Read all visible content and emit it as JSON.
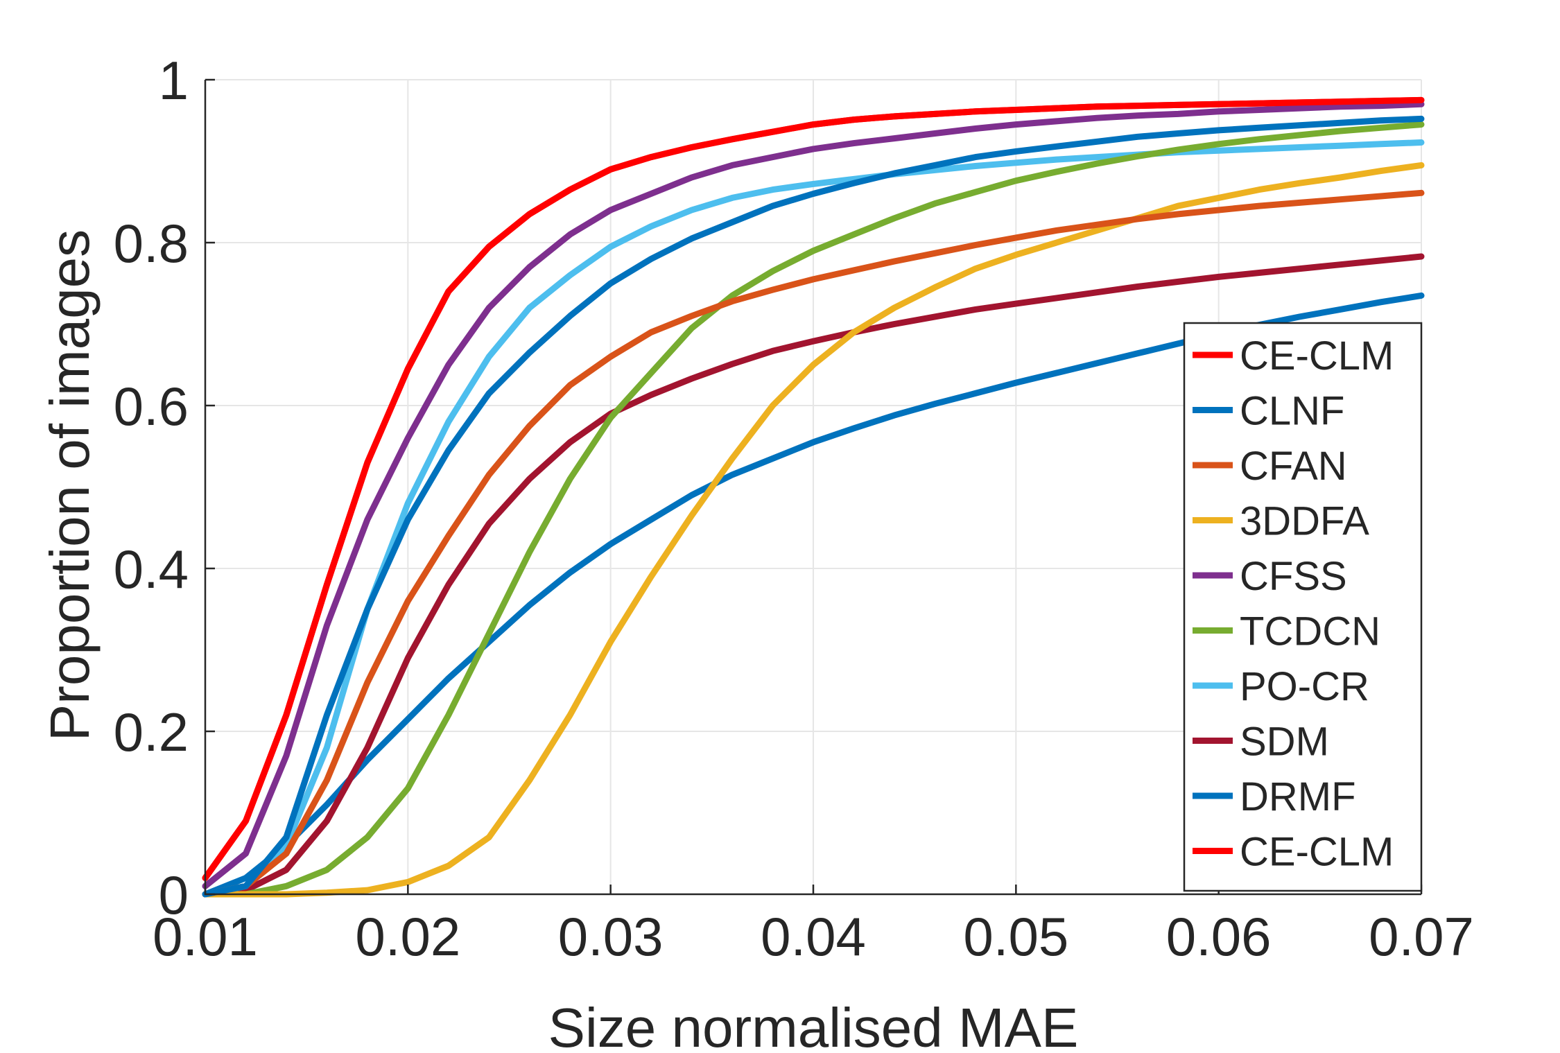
{
  "chart_data": {
    "type": "line",
    "title": "",
    "xlabel": "Size normalised MAE",
    "ylabel": "Proportion of images",
    "xlim": [
      0.01,
      0.07
    ],
    "ylim": [
      0,
      1
    ],
    "xticks": [
      "0.01",
      "0.02",
      "0.03",
      "0.04",
      "0.05",
      "0.06",
      "0.07"
    ],
    "yticks": [
      "0",
      "0.2",
      "0.4",
      "0.6",
      "0.8",
      "1"
    ],
    "grid": true,
    "legend_position": "bottom-right",
    "x": [
      0.01,
      0.012,
      0.014,
      0.016,
      0.018,
      0.02,
      0.022,
      0.024,
      0.026,
      0.028,
      0.03,
      0.032,
      0.034,
      0.036,
      0.038,
      0.04,
      0.042,
      0.044,
      0.046,
      0.048,
      0.05,
      0.052,
      0.054,
      0.056,
      0.058,
      0.06,
      0.062,
      0.064,
      0.066,
      0.068,
      0.07
    ],
    "series": [
      {
        "name": "CE-CLM",
        "color": "#ff0000",
        "values": [
          0.02,
          0.09,
          0.22,
          0.38,
          0.53,
          0.645,
          0.74,
          0.795,
          0.835,
          0.865,
          0.89,
          0.905,
          0.917,
          0.927,
          0.936,
          0.945,
          0.951,
          0.955,
          0.958,
          0.961,
          0.963,
          0.965,
          0.967,
          0.968,
          0.969,
          0.97,
          0.971,
          0.972,
          0.973,
          0.974,
          0.975
        ]
      },
      {
        "name": "CLNF",
        "color": "#0072bd",
        "values": [
          0.0,
          0.01,
          0.07,
          0.22,
          0.35,
          0.46,
          0.545,
          0.615,
          0.665,
          0.71,
          0.75,
          0.78,
          0.805,
          0.825,
          0.845,
          0.86,
          0.873,
          0.885,
          0.895,
          0.905,
          0.912,
          0.918,
          0.924,
          0.93,
          0.934,
          0.938,
          0.941,
          0.944,
          0.947,
          0.95,
          0.952
        ]
      },
      {
        "name": "CFAN",
        "color": "#d95319",
        "values": [
          0.0,
          0.01,
          0.05,
          0.14,
          0.26,
          0.36,
          0.44,
          0.515,
          0.575,
          0.625,
          0.66,
          0.69,
          0.71,
          0.728,
          0.742,
          0.755,
          0.766,
          0.777,
          0.787,
          0.797,
          0.806,
          0.815,
          0.822,
          0.829,
          0.835,
          0.84,
          0.845,
          0.849,
          0.853,
          0.857,
          0.861
        ]
      },
      {
        "name": "3DDFA",
        "color": "#edb120",
        "values": [
          0.0,
          0.0,
          0.0,
          0.002,
          0.005,
          0.015,
          0.035,
          0.07,
          0.14,
          0.22,
          0.31,
          0.39,
          0.465,
          0.535,
          0.6,
          0.65,
          0.69,
          0.72,
          0.745,
          0.768,
          0.785,
          0.8,
          0.815,
          0.83,
          0.845,
          0.855,
          0.865,
          0.873,
          0.88,
          0.888,
          0.895
        ]
      },
      {
        "name": "CFSS",
        "color": "#7e2f8e",
        "values": [
          0.01,
          0.05,
          0.17,
          0.33,
          0.46,
          0.56,
          0.65,
          0.72,
          0.77,
          0.81,
          0.84,
          0.86,
          0.88,
          0.895,
          0.905,
          0.915,
          0.922,
          0.928,
          0.934,
          0.94,
          0.945,
          0.949,
          0.953,
          0.956,
          0.958,
          0.961,
          0.963,
          0.965,
          0.967,
          0.968,
          0.97
        ]
      },
      {
        "name": "TCDCN",
        "color": "#77ac30",
        "values": [
          0.0,
          0.0,
          0.01,
          0.03,
          0.07,
          0.13,
          0.22,
          0.32,
          0.42,
          0.51,
          0.585,
          0.64,
          0.695,
          0.735,
          0.765,
          0.79,
          0.81,
          0.83,
          0.848,
          0.862,
          0.876,
          0.887,
          0.897,
          0.906,
          0.914,
          0.921,
          0.927,
          0.932,
          0.937,
          0.941,
          0.945
        ]
      },
      {
        "name": "PO-CR",
        "color": "#4dbeee",
        "values": [
          0.0,
          0.01,
          0.06,
          0.18,
          0.35,
          0.48,
          0.58,
          0.66,
          0.72,
          0.76,
          0.795,
          0.82,
          0.84,
          0.855,
          0.865,
          0.872,
          0.878,
          0.884,
          0.889,
          0.894,
          0.898,
          0.902,
          0.905,
          0.908,
          0.911,
          0.913,
          0.915,
          0.917,
          0.919,
          0.921,
          0.923
        ]
      },
      {
        "name": "SDM",
        "color": "#a2142f",
        "values": [
          0.0,
          0.005,
          0.03,
          0.09,
          0.18,
          0.29,
          0.38,
          0.455,
          0.51,
          0.555,
          0.59,
          0.613,
          0.633,
          0.651,
          0.667,
          0.679,
          0.69,
          0.7,
          0.709,
          0.718,
          0.725,
          0.732,
          0.739,
          0.746,
          0.752,
          0.758,
          0.763,
          0.768,
          0.773,
          0.778,
          0.783
        ]
      },
      {
        "name": "DRMF",
        "color": "#0072bd",
        "values": [
          0.0,
          0.02,
          0.06,
          0.11,
          0.165,
          0.215,
          0.265,
          0.31,
          0.355,
          0.395,
          0.43,
          0.46,
          0.49,
          0.515,
          0.535,
          0.555,
          0.572,
          0.588,
          0.602,
          0.615,
          0.628,
          0.64,
          0.652,
          0.664,
          0.676,
          0.688,
          0.699,
          0.709,
          0.718,
          0.727,
          0.735
        ]
      },
      {
        "name": "CE-CLM",
        "color": "#ff0000",
        "values": [
          0.02,
          0.09,
          0.22,
          0.38,
          0.53,
          0.645,
          0.74,
          0.795,
          0.835,
          0.865,
          0.89,
          0.905,
          0.917,
          0.927,
          0.936,
          0.945,
          0.951,
          0.955,
          0.958,
          0.961,
          0.963,
          0.965,
          0.967,
          0.968,
          0.969,
          0.97,
          0.971,
          0.972,
          0.973,
          0.974,
          0.975
        ]
      }
    ]
  }
}
